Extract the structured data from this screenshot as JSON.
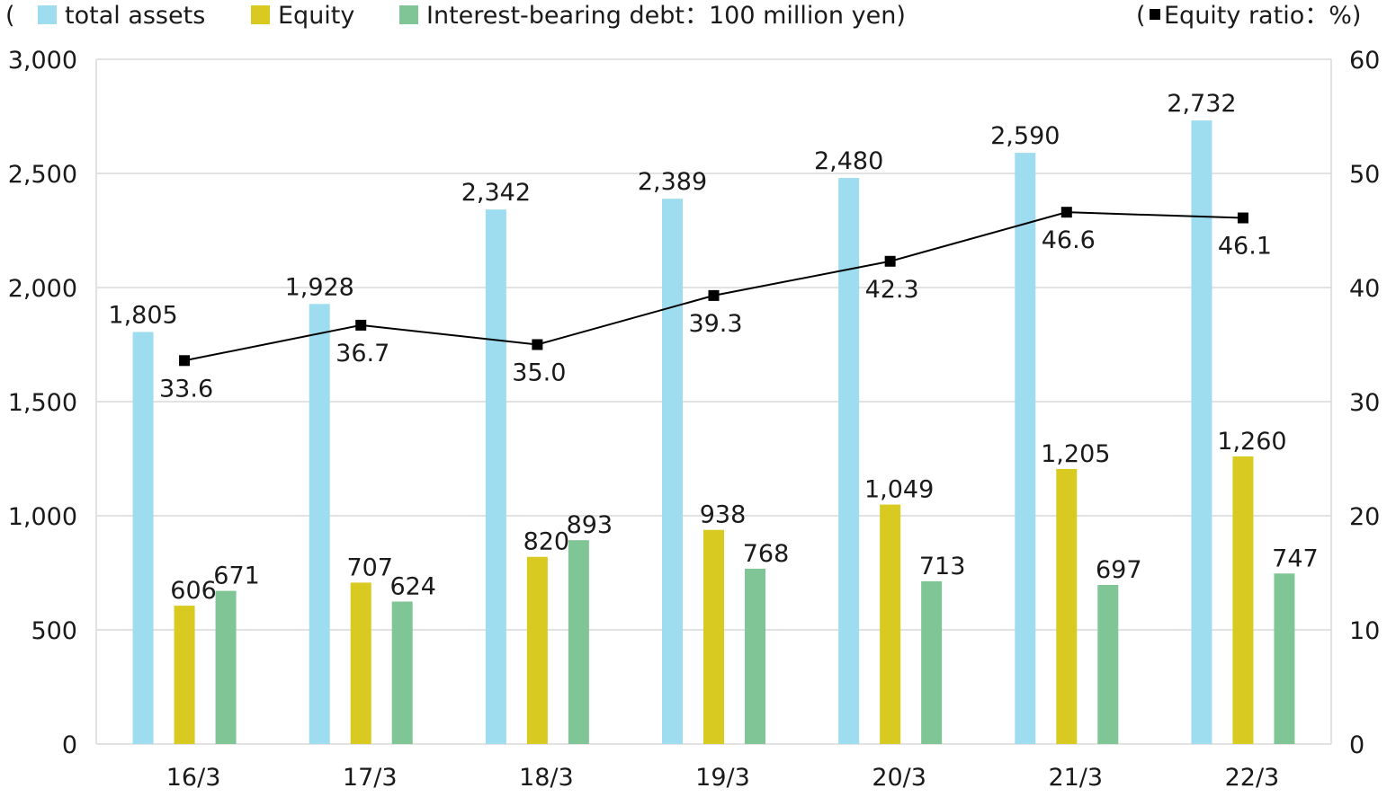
{
  "legend": {
    "open_paren": "(",
    "items": [
      {
        "label": "total assets",
        "color": "#9edcef"
      },
      {
        "label": "Equity",
        "color": "#d8ca20"
      },
      {
        "label": "Interest-bearing debt：100 million yen)",
        "color": "#80c595"
      }
    ],
    "right_open": "(",
    "right_label": "Equity ratio：%)"
  },
  "chart_data": {
    "type": "bar",
    "categories": [
      "16/3",
      "17/3",
      "18/3",
      "19/3",
      "20/3",
      "21/3",
      "22/3"
    ],
    "series": [
      {
        "name": "total assets",
        "color": "#9edcef",
        "values": [
          1805,
          1928,
          2342,
          2389,
          2480,
          2590,
          2732
        ],
        "labels": [
          "1,805",
          "1,928",
          "2,342",
          "2,389",
          "2,480",
          "2,590",
          "2,732"
        ]
      },
      {
        "name": "Equity",
        "color": "#d8ca20",
        "values": [
          606,
          707,
          820,
          938,
          1049,
          1205,
          1260
        ],
        "labels": [
          "606",
          "707",
          "820",
          "938",
          "1,049",
          "1,205",
          "1,260"
        ]
      },
      {
        "name": "Interest-bearing debt",
        "color": "#80c595",
        "values": [
          671,
          624,
          893,
          768,
          713,
          697,
          747
        ],
        "labels": [
          "671",
          "624",
          "893",
          "768",
          "713",
          "697",
          "747"
        ]
      }
    ],
    "line_series": {
      "name": "Equity ratio",
      "color": "#000000",
      "axis": "right",
      "values": [
        33.6,
        36.7,
        35.0,
        39.3,
        42.3,
        46.6,
        46.1
      ],
      "labels": [
        "33.6",
        "36.7",
        "35.0",
        "39.3",
        "42.3",
        "46.6",
        "46.1"
      ]
    },
    "y_left": {
      "min": 0,
      "max": 3000,
      "ticks": [
        0,
        500,
        1000,
        1500,
        2000,
        2500,
        3000
      ],
      "tick_labels": [
        "0",
        "500",
        "1,000",
        "1,500",
        "2,000",
        "2,500",
        "3,000"
      ]
    },
    "y_right": {
      "min": 0,
      "max": 60,
      "ticks": [
        0,
        10,
        20,
        30,
        40,
        50,
        60
      ],
      "tick_labels": [
        "0",
        "10",
        "20",
        "30",
        "40",
        "50",
        "60"
      ]
    },
    "grid": true,
    "legend_position": "top"
  }
}
